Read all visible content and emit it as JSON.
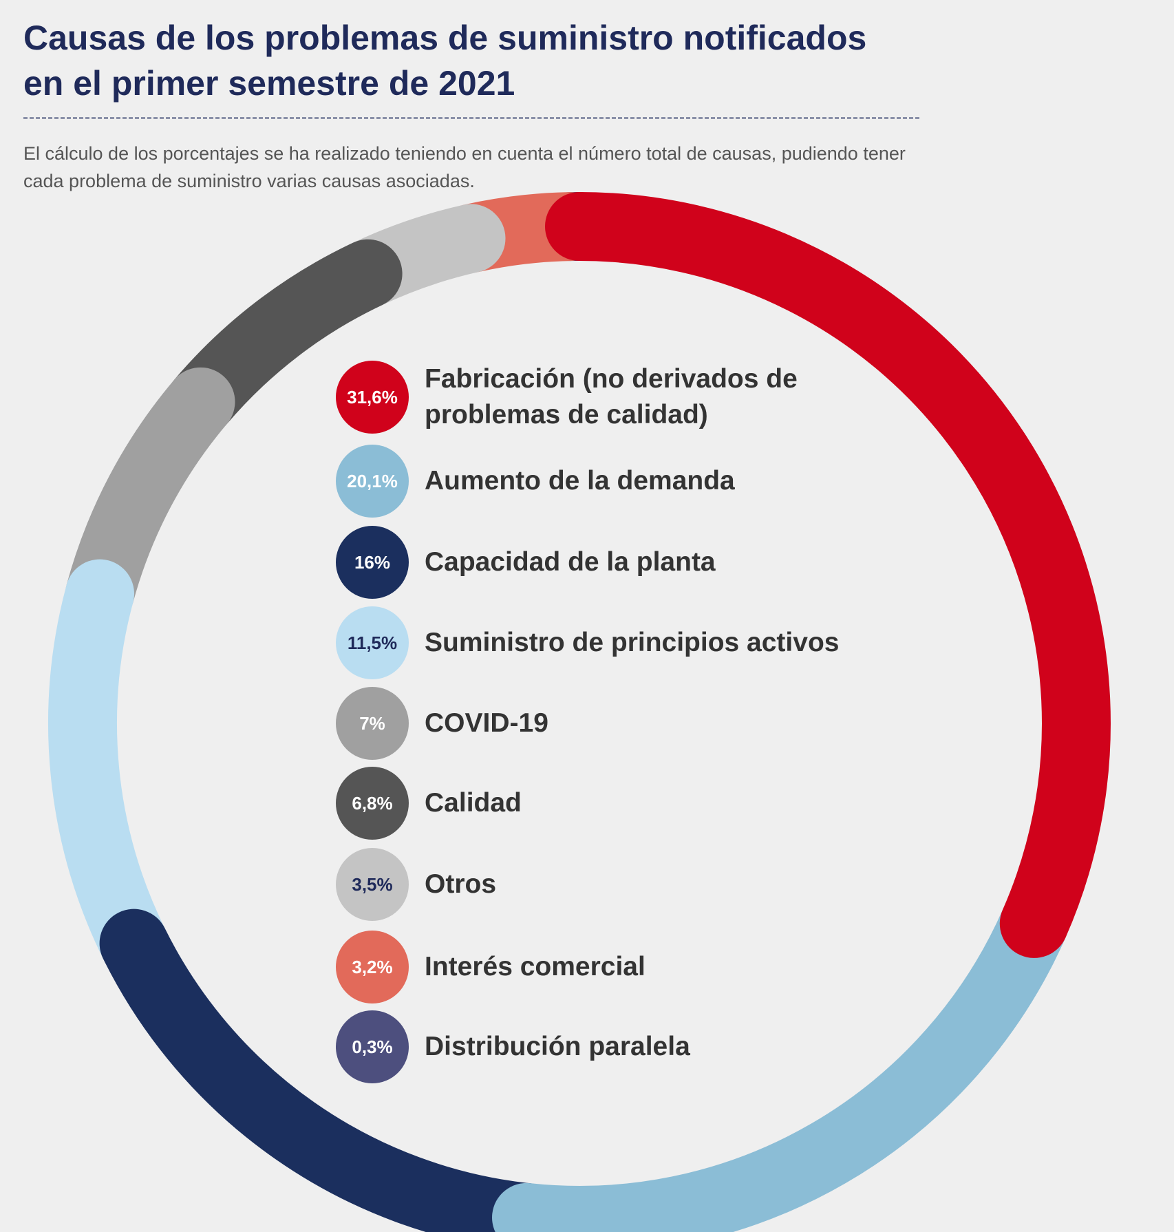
{
  "chart_data": {
    "type": "donut",
    "title": "Causas de los problemas de suministro notificados en el primer semestre de 2021",
    "subtitle": "El cálculo de los porcentajes se ha realizado teniendo en cuenta el número total de causas, pudiendo tener cada problema de suministro varias causas asociadas.",
    "categories": [
      "Fabricación (no derivados de problemas de calidad)",
      "Aumento de la demanda",
      "Capacidad de la planta",
      "Suministro de principios activos",
      "COVID-19",
      "Calidad",
      "Otros",
      "Interés comercial",
      "Distribución paralela"
    ],
    "values": [
      31.6,
      20.1,
      16,
      11.5,
      7,
      6.8,
      3.5,
      3.2,
      0.3
    ],
    "value_labels": [
      "31,6%",
      "20,1%",
      "16%",
      "11,5%",
      "7%",
      "6,8%",
      "3,5%",
      "3,2%",
      "0,3%"
    ],
    "colors": [
      "#d0021b",
      "#8bbdd6",
      "#1b2f5e",
      "#b9ddf1",
      "#a0a0a0",
      "#555555",
      "#c4c4c4",
      "#e26a5a",
      "#4d4f7e"
    ]
  }
}
